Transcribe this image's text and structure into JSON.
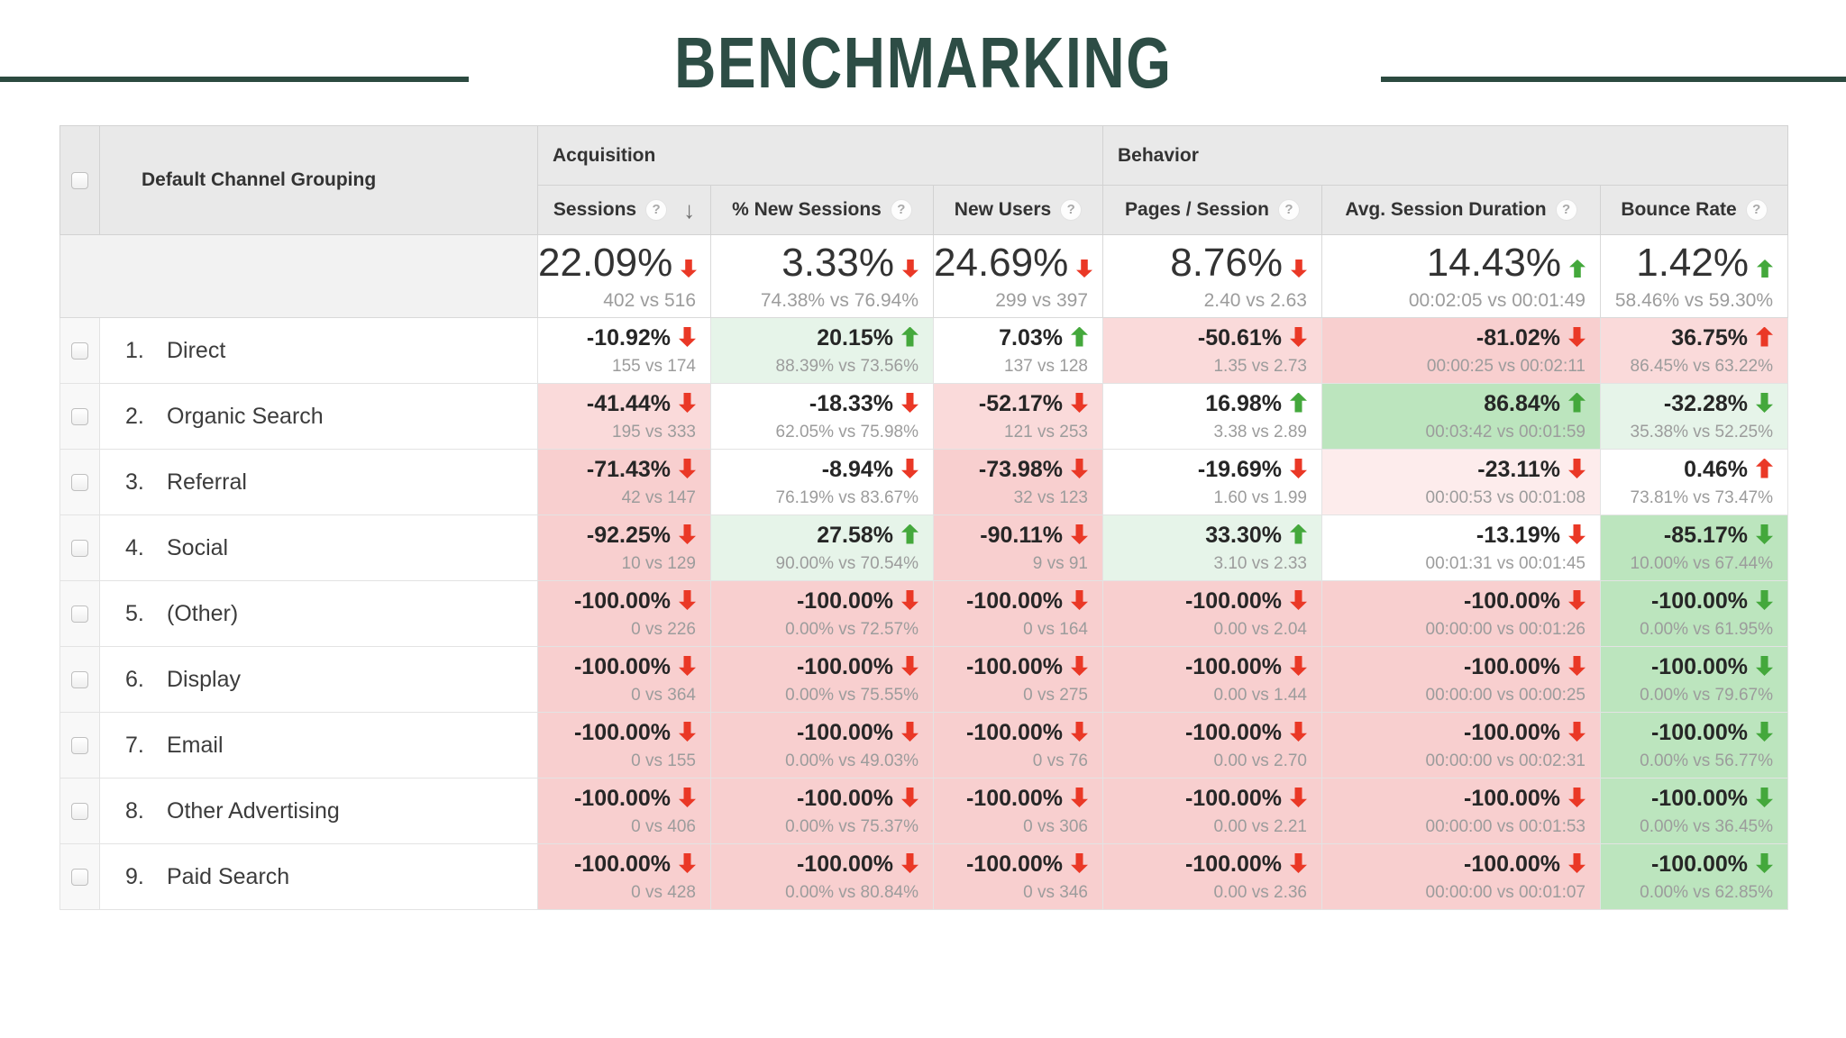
{
  "page": {
    "title": "BENCHMARKING"
  },
  "colors": {
    "title_green": "#2d4d45",
    "rule_green": "#2c4a40",
    "header_bg": "#e9e9e9",
    "arrow_red": "#ea3826",
    "arrow_green": "#44a83c",
    "cell_green_light": "#e6f4e9",
    "cell_green_strong": "#bce5be",
    "cell_red_faint": "#fdecec",
    "cell_red_light": "#fadada",
    "cell_red_strong": "#f8cfcf"
  },
  "table": {
    "row_header_label": "Default Channel Grouping",
    "groups": [
      {
        "label": "Acquisition"
      },
      {
        "label": "Behavior"
      }
    ],
    "columns": [
      {
        "label": "Sessions",
        "help": "?",
        "sorted": "desc",
        "sort_glyph": "↓"
      },
      {
        "label": "% New Sessions",
        "help": "?"
      },
      {
        "label": "New Users",
        "help": "?"
      },
      {
        "label": "Pages / Session",
        "help": "?"
      },
      {
        "label": "Avg. Session Duration",
        "help": "?"
      },
      {
        "label": "Bounce Rate",
        "help": "?"
      }
    ],
    "summary": {
      "cells": [
        {
          "pct": "22.09%",
          "arrow": "red-down",
          "sub": "402 vs 516"
        },
        {
          "pct": "3.33%",
          "arrow": "red-down",
          "sub": "74.38% vs 76.94%"
        },
        {
          "pct": "24.69%",
          "arrow": "red-down",
          "sub": "299 vs 397"
        },
        {
          "pct": "8.76%",
          "arrow": "red-down",
          "sub": "2.40 vs 2.63"
        },
        {
          "pct": "14.43%",
          "arrow": "green-up",
          "sub": "00:02:05 vs 00:01:49"
        },
        {
          "pct": "1.42%",
          "arrow": "green-up",
          "sub": "58.46% vs 59.30%"
        }
      ]
    },
    "rows": [
      {
        "num": "1.",
        "channel": "Direct",
        "cells": [
          {
            "pct": "-10.92%",
            "arrow": "red-down",
            "sub": "155 vs 174",
            "bg": "white"
          },
          {
            "pct": "20.15%",
            "arrow": "green-up",
            "sub": "88.39% vs 73.56%",
            "bg": "green1"
          },
          {
            "pct": "7.03%",
            "arrow": "green-up",
            "sub": "137 vs 128",
            "bg": "white"
          },
          {
            "pct": "-50.61%",
            "arrow": "red-down",
            "sub": "1.35 vs 2.73",
            "bg": "red2"
          },
          {
            "pct": "-81.02%",
            "arrow": "red-down",
            "sub": "00:00:25 vs 00:02:11",
            "bg": "red3"
          },
          {
            "pct": "36.75%",
            "arrow": "red-up",
            "sub": "86.45% vs 63.22%",
            "bg": "red2"
          }
        ]
      },
      {
        "num": "2.",
        "channel": "Organic Search",
        "cells": [
          {
            "pct": "-41.44%",
            "arrow": "red-down",
            "sub": "195 vs 333",
            "bg": "red2"
          },
          {
            "pct": "-18.33%",
            "arrow": "red-down",
            "sub": "62.05% vs 75.98%",
            "bg": "white"
          },
          {
            "pct": "-52.17%",
            "arrow": "red-down",
            "sub": "121 vs 253",
            "bg": "red2"
          },
          {
            "pct": "16.98%",
            "arrow": "green-up",
            "sub": "3.38 vs 2.89",
            "bg": "white"
          },
          {
            "pct": "86.84%",
            "arrow": "green-up",
            "sub": "00:03:42 vs 00:01:59",
            "bg": "green2"
          },
          {
            "pct": "-32.28%",
            "arrow": "green-down",
            "sub": "35.38% vs 52.25%",
            "bg": "green1"
          }
        ]
      },
      {
        "num": "3.",
        "channel": "Referral",
        "cells": [
          {
            "pct": "-71.43%",
            "arrow": "red-down",
            "sub": "42 vs 147",
            "bg": "red3"
          },
          {
            "pct": "-8.94%",
            "arrow": "red-down",
            "sub": "76.19% vs 83.67%",
            "bg": "white"
          },
          {
            "pct": "-73.98%",
            "arrow": "red-down",
            "sub": "32 vs 123",
            "bg": "red3"
          },
          {
            "pct": "-19.69%",
            "arrow": "red-down",
            "sub": "1.60 vs 1.99",
            "bg": "white"
          },
          {
            "pct": "-23.11%",
            "arrow": "red-down",
            "sub": "00:00:53 vs 00:01:08",
            "bg": "red1"
          },
          {
            "pct": "0.46%",
            "arrow": "red-up",
            "sub": "73.81% vs 73.47%",
            "bg": "white"
          }
        ]
      },
      {
        "num": "4.",
        "channel": "Social",
        "cells": [
          {
            "pct": "-92.25%",
            "arrow": "red-down",
            "sub": "10 vs 129",
            "bg": "red3"
          },
          {
            "pct": "27.58%",
            "arrow": "green-up",
            "sub": "90.00% vs 70.54%",
            "bg": "green1"
          },
          {
            "pct": "-90.11%",
            "arrow": "red-down",
            "sub": "9 vs 91",
            "bg": "red3"
          },
          {
            "pct": "33.30%",
            "arrow": "green-up",
            "sub": "3.10 vs 2.33",
            "bg": "green1"
          },
          {
            "pct": "-13.19%",
            "arrow": "red-down",
            "sub": "00:01:31 vs 00:01:45",
            "bg": "white"
          },
          {
            "pct": "-85.17%",
            "arrow": "green-down",
            "sub": "10.00% vs 67.44%",
            "bg": "green2"
          }
        ]
      },
      {
        "num": "5.",
        "channel": "(Other)",
        "cells": [
          {
            "pct": "-100.00%",
            "arrow": "red-down",
            "sub": "0 vs 226",
            "bg": "red3"
          },
          {
            "pct": "-100.00%",
            "arrow": "red-down",
            "sub": "0.00% vs 72.57%",
            "bg": "red3"
          },
          {
            "pct": "-100.00%",
            "arrow": "red-down",
            "sub": "0 vs 164",
            "bg": "red3"
          },
          {
            "pct": "-100.00%",
            "arrow": "red-down",
            "sub": "0.00 vs 2.04",
            "bg": "red3"
          },
          {
            "pct": "-100.00%",
            "arrow": "red-down",
            "sub": "00:00:00 vs 00:01:26",
            "bg": "red3"
          },
          {
            "pct": "-100.00%",
            "arrow": "green-down",
            "sub": "0.00% vs 61.95%",
            "bg": "green2"
          }
        ]
      },
      {
        "num": "6.",
        "channel": "Display",
        "cells": [
          {
            "pct": "-100.00%",
            "arrow": "red-down",
            "sub": "0 vs 364",
            "bg": "red3"
          },
          {
            "pct": "-100.00%",
            "arrow": "red-down",
            "sub": "0.00% vs 75.55%",
            "bg": "red3"
          },
          {
            "pct": "-100.00%",
            "arrow": "red-down",
            "sub": "0 vs 275",
            "bg": "red3"
          },
          {
            "pct": "-100.00%",
            "arrow": "red-down",
            "sub": "0.00 vs 1.44",
            "bg": "red3"
          },
          {
            "pct": "-100.00%",
            "arrow": "red-down",
            "sub": "00:00:00 vs 00:00:25",
            "bg": "red3"
          },
          {
            "pct": "-100.00%",
            "arrow": "green-down",
            "sub": "0.00% vs 79.67%",
            "bg": "green2"
          }
        ]
      },
      {
        "num": "7.",
        "channel": "Email",
        "cells": [
          {
            "pct": "-100.00%",
            "arrow": "red-down",
            "sub": "0 vs 155",
            "bg": "red3"
          },
          {
            "pct": "-100.00%",
            "arrow": "red-down",
            "sub": "0.00% vs 49.03%",
            "bg": "red3"
          },
          {
            "pct": "-100.00%",
            "arrow": "red-down",
            "sub": "0 vs 76",
            "bg": "red3"
          },
          {
            "pct": "-100.00%",
            "arrow": "red-down",
            "sub": "0.00 vs 2.70",
            "bg": "red3"
          },
          {
            "pct": "-100.00%",
            "arrow": "red-down",
            "sub": "00:00:00 vs 00:02:31",
            "bg": "red3"
          },
          {
            "pct": "-100.00%",
            "arrow": "green-down",
            "sub": "0.00% vs 56.77%",
            "bg": "green2"
          }
        ]
      },
      {
        "num": "8.",
        "channel": "Other Advertising",
        "cells": [
          {
            "pct": "-100.00%",
            "arrow": "red-down",
            "sub": "0 vs 406",
            "bg": "red3"
          },
          {
            "pct": "-100.00%",
            "arrow": "red-down",
            "sub": "0.00% vs 75.37%",
            "bg": "red3"
          },
          {
            "pct": "-100.00%",
            "arrow": "red-down",
            "sub": "0 vs 306",
            "bg": "red3"
          },
          {
            "pct": "-100.00%",
            "arrow": "red-down",
            "sub": "0.00 vs 2.21",
            "bg": "red3"
          },
          {
            "pct": "-100.00%",
            "arrow": "red-down",
            "sub": "00:00:00 vs 00:01:53",
            "bg": "red3"
          },
          {
            "pct": "-100.00%",
            "arrow": "green-down",
            "sub": "0.00% vs 36.45%",
            "bg": "green2"
          }
        ]
      },
      {
        "num": "9.",
        "channel": "Paid Search",
        "cells": [
          {
            "pct": "-100.00%",
            "arrow": "red-down",
            "sub": "0 vs 428",
            "bg": "red3"
          },
          {
            "pct": "-100.00%",
            "arrow": "red-down",
            "sub": "0.00% vs 80.84%",
            "bg": "red3"
          },
          {
            "pct": "-100.00%",
            "arrow": "red-down",
            "sub": "0 vs 346",
            "bg": "red3"
          },
          {
            "pct": "-100.00%",
            "arrow": "red-down",
            "sub": "0.00 vs 2.36",
            "bg": "red3"
          },
          {
            "pct": "-100.00%",
            "arrow": "red-down",
            "sub": "00:00:00 vs 00:01:07",
            "bg": "red3"
          },
          {
            "pct": "-100.00%",
            "arrow": "green-down",
            "sub": "0.00% vs 62.85%",
            "bg": "green2"
          }
        ]
      }
    ]
  }
}
